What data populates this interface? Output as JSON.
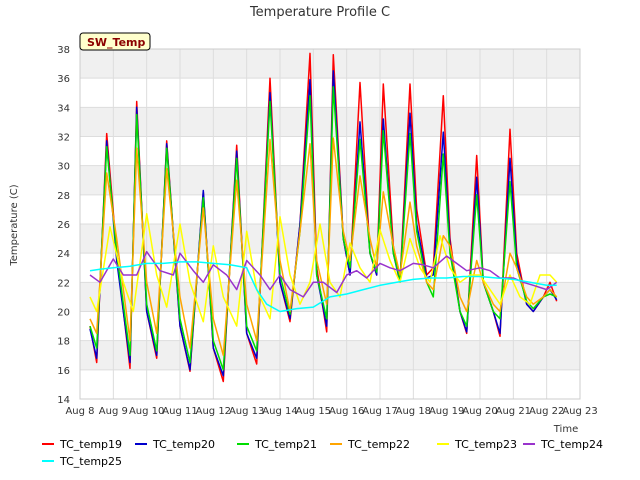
{
  "chart_data": {
    "type": "line",
    "title": "Temperature Profile C",
    "badge": "SW_Temp",
    "xlabel": "Time",
    "ylabel": "Temperature (C)",
    "ylim": [
      14,
      38
    ],
    "yticks": [
      14,
      16,
      18,
      20,
      22,
      24,
      26,
      28,
      30,
      32,
      34,
      36,
      38
    ],
    "xlim": [
      8,
      23
    ],
    "xticks": [
      8,
      9,
      10,
      11,
      12,
      13,
      14,
      15,
      16,
      17,
      18,
      19,
      20,
      21,
      22,
      23
    ],
    "xtick_labels": [
      "Aug 8",
      "Aug 9",
      "Aug 10",
      "Aug 11",
      "Aug 12",
      "Aug 13",
      "Aug 14",
      "Aug 15",
      "Aug 16",
      "Aug 17",
      "Aug 18",
      "Aug 19",
      "Aug 20",
      "Aug 21",
      "Aug 22",
      "Aug 23"
    ],
    "grid": true,
    "legend_position": "bottom",
    "series": [
      {
        "name": "TC_temp19",
        "color": "#ff0000",
        "x": [
          8.3,
          8.5,
          8.8,
          9.1,
          9.5,
          9.7,
          10.0,
          10.3,
          10.6,
          11.0,
          11.3,
          11.7,
          12.0,
          12.3,
          12.7,
          13.0,
          13.3,
          13.7,
          14.0,
          14.3,
          14.6,
          14.9,
          15.1,
          15.4,
          15.6,
          15.9,
          16.1,
          16.4,
          16.7,
          16.9,
          17.1,
          17.4,
          17.6,
          17.9,
          18.1,
          18.4,
          18.6,
          18.9,
          19.1,
          19.4,
          19.6,
          19.9,
          20.1,
          20.4,
          20.6,
          20.9,
          21.1,
          21.4,
          21.6,
          21.9,
          22.1,
          22.3
        ],
        "y": [
          19.0,
          16.5,
          32.2,
          24.0,
          16.1,
          34.4,
          20.0,
          16.8,
          31.7,
          19.0,
          15.9,
          28.2,
          17.5,
          15.2,
          31.4,
          18.5,
          16.4,
          36.0,
          22.0,
          19.3,
          26.0,
          37.7,
          23.0,
          18.6,
          37.6,
          25.0,
          22.5,
          35.7,
          24.0,
          22.5,
          35.6,
          24.5,
          22.0,
          35.6,
          27.0,
          22.5,
          23.0,
          34.8,
          25.0,
          20.0,
          18.5,
          30.7,
          22.0,
          20.0,
          18.3,
          32.5,
          24.0,
          20.5,
          20.0,
          21.0,
          22.0,
          20.7
        ]
      },
      {
        "name": "TC_temp20",
        "color": "#0000cc",
        "x": [
          8.3,
          8.5,
          8.8,
          9.1,
          9.5,
          9.7,
          10.0,
          10.3,
          10.6,
          11.0,
          11.3,
          11.7,
          12.0,
          12.3,
          12.7,
          13.0,
          13.3,
          13.7,
          14.0,
          14.3,
          14.6,
          14.9,
          15.1,
          15.4,
          15.6,
          15.9,
          16.1,
          16.4,
          16.7,
          16.9,
          17.1,
          17.4,
          17.6,
          17.9,
          18.1,
          18.4,
          18.6,
          18.9,
          19.1,
          19.4,
          19.6,
          19.9,
          20.1,
          20.4,
          20.6,
          20.9,
          21.1,
          21.4,
          21.6,
          21.9,
          22.1,
          22.3
        ],
        "y": [
          18.8,
          16.8,
          31.7,
          23.5,
          16.5,
          34.0,
          20.0,
          17.0,
          31.5,
          19.0,
          16.0,
          28.3,
          17.5,
          15.6,
          31.0,
          18.5,
          16.8,
          35.0,
          22.0,
          19.5,
          26.0,
          35.9,
          22.5,
          19.0,
          36.5,
          25.0,
          22.5,
          33.0,
          24.0,
          22.5,
          33.2,
          24.0,
          22.0,
          33.6,
          26.0,
          22.3,
          22.5,
          32.3,
          24.5,
          20.0,
          18.6,
          29.2,
          22.0,
          20.0,
          18.5,
          30.5,
          23.5,
          20.5,
          20.0,
          21.0,
          21.5,
          20.8
        ]
      },
      {
        "name": "TC_temp21",
        "color": "#00dd00",
        "x": [
          8.3,
          8.5,
          8.8,
          9.1,
          9.5,
          9.7,
          10.0,
          10.3,
          10.6,
          11.0,
          11.3,
          11.7,
          12.0,
          12.3,
          12.7,
          13.0,
          13.3,
          13.7,
          14.0,
          14.3,
          14.6,
          14.9,
          15.1,
          15.4,
          15.6,
          15.9,
          16.1,
          16.4,
          16.7,
          16.9,
          17.1,
          17.4,
          17.6,
          17.9,
          18.1,
          18.4,
          18.6,
          18.9,
          19.1,
          19.4,
          19.6,
          19.9,
          20.1,
          20.4,
          20.6,
          20.9,
          21.1,
          21.4,
          21.6,
          21.9,
          22.1,
          22.3
        ],
        "y": [
          19.0,
          17.5,
          31.3,
          24.0,
          17.0,
          33.5,
          20.5,
          17.3,
          31.2,
          19.5,
          16.5,
          27.8,
          18.0,
          16.0,
          30.5,
          19.0,
          17.3,
          34.4,
          22.5,
          19.8,
          25.5,
          34.8,
          22.5,
          19.5,
          35.4,
          25.0,
          23.0,
          31.8,
          24.0,
          22.7,
          32.4,
          24.0,
          22.2,
          32.2,
          25.5,
          22.0,
          21.0,
          30.8,
          24.0,
          20.0,
          19.0,
          28.0,
          22.0,
          20.0,
          19.5,
          28.9,
          23.0,
          20.7,
          20.2,
          21.0,
          21.2,
          21.0
        ]
      },
      {
        "name": "TC_temp22",
        "color": "#ffa500",
        "x": [
          8.3,
          8.5,
          8.8,
          9.1,
          9.5,
          9.7,
          10.0,
          10.3,
          10.6,
          11.0,
          11.3,
          11.7,
          12.0,
          12.3,
          12.7,
          13.0,
          13.3,
          13.7,
          14.0,
          14.3,
          14.6,
          14.9,
          15.1,
          15.4,
          15.6,
          15.9,
          16.1,
          16.4,
          16.7,
          16.9,
          17.1,
          17.4,
          17.6,
          17.9,
          18.1,
          18.4,
          18.6,
          18.9,
          19.1,
          19.4,
          19.6,
          19.9,
          20.1,
          20.4,
          20.6,
          20.9,
          21.1,
          21.4,
          21.6,
          21.9,
          22.1,
          22.3
        ],
        "y": [
          19.5,
          18.5,
          29.5,
          25.0,
          18.0,
          31.2,
          22.0,
          18.5,
          29.8,
          21.0,
          17.5,
          27.1,
          19.5,
          17.0,
          29.0,
          20.5,
          18.0,
          31.8,
          23.5,
          20.0,
          25.5,
          31.5,
          23.5,
          20.5,
          31.9,
          25.5,
          23.5,
          29.3,
          25.0,
          23.0,
          28.2,
          24.5,
          22.5,
          27.5,
          24.5,
          22.0,
          21.5,
          25.2,
          24.5,
          21.0,
          20.0,
          23.5,
          22.0,
          20.5,
          20.0,
          24.0,
          23.0,
          21.0,
          20.5,
          21.0,
          21.5,
          21.0
        ]
      },
      {
        "name": "TC_temp23",
        "color": "#ffff00",
        "x": [
          8.3,
          8.5,
          8.9,
          9.3,
          9.6,
          10.0,
          10.3,
          10.6,
          11.0,
          11.3,
          11.7,
          12.0,
          12.3,
          12.7,
          13.0,
          13.3,
          13.7,
          14.0,
          14.3,
          14.6,
          14.9,
          15.2,
          15.5,
          15.8,
          16.1,
          16.4,
          16.7,
          17.0,
          17.3,
          17.6,
          17.9,
          18.2,
          18.5,
          18.8,
          19.1,
          19.4,
          19.7,
          20.0,
          20.3,
          20.6,
          20.9,
          21.2,
          21.5,
          21.8,
          22.1,
          22.3
        ],
        "y": [
          21.0,
          20.0,
          25.8,
          22.0,
          20.0,
          26.7,
          22.5,
          20.3,
          26.0,
          22.0,
          19.3,
          24.5,
          21.0,
          19.0,
          25.5,
          21.5,
          19.5,
          26.5,
          22.5,
          20.5,
          22.0,
          26.0,
          22.0,
          21.0,
          24.7,
          23.0,
          22.0,
          25.6,
          23.5,
          22.0,
          25.0,
          23.0,
          22.0,
          25.2,
          23.0,
          22.0,
          22.5,
          22.5,
          21.5,
          20.5,
          22.5,
          21.0,
          20.5,
          22.5,
          22.5,
          22.0
        ]
      },
      {
        "name": "TC_temp24",
        "color": "#9933cc",
        "x": [
          8.3,
          8.6,
          9.0,
          9.3,
          9.7,
          10.0,
          10.4,
          10.8,
          11.0,
          11.4,
          11.7,
          12.0,
          12.4,
          12.7,
          13.0,
          13.4,
          13.7,
          14.0,
          14.3,
          14.7,
          15.0,
          15.3,
          15.7,
          16.0,
          16.3,
          16.6,
          17.0,
          17.3,
          17.6,
          18.0,
          18.3,
          18.6,
          19.0,
          19.3,
          19.6,
          20.0,
          20.3,
          20.6,
          21.0,
          21.3,
          21.6,
          22.0,
          22.3
        ],
        "y": [
          22.5,
          22.0,
          23.6,
          22.5,
          22.5,
          24.1,
          22.8,
          22.5,
          24.0,
          22.8,
          22.0,
          23.2,
          22.5,
          21.5,
          23.5,
          22.5,
          21.5,
          22.5,
          21.5,
          21.0,
          22.0,
          22.0,
          21.3,
          22.5,
          22.8,
          22.3,
          23.3,
          23.0,
          22.8,
          23.3,
          23.2,
          23.0,
          23.8,
          23.3,
          22.8,
          23.0,
          22.8,
          22.3,
          22.3,
          22.0,
          21.8,
          21.5,
          22.0
        ]
      },
      {
        "name": "TC_temp25",
        "color": "#00ffff",
        "x": [
          8.3,
          8.6,
          9.0,
          9.5,
          10.0,
          10.5,
          11.0,
          11.5,
          12.0,
          12.5,
          13.0,
          13.3,
          13.6,
          14.0,
          14.5,
          15.0,
          15.5,
          16.0,
          16.5,
          17.0,
          17.5,
          18.0,
          18.5,
          19.0,
          19.5,
          20.0,
          20.5,
          21.0,
          21.5,
          22.0,
          22.3
        ],
        "y": [
          22.8,
          22.9,
          23.0,
          23.1,
          23.3,
          23.3,
          23.4,
          23.4,
          23.3,
          23.2,
          23.0,
          21.5,
          20.5,
          20.0,
          20.2,
          20.3,
          21.0,
          21.2,
          21.5,
          21.8,
          22.0,
          22.2,
          22.3,
          22.3,
          22.4,
          22.4,
          22.3,
          22.2,
          22.0,
          21.8,
          21.8
        ]
      }
    ]
  }
}
